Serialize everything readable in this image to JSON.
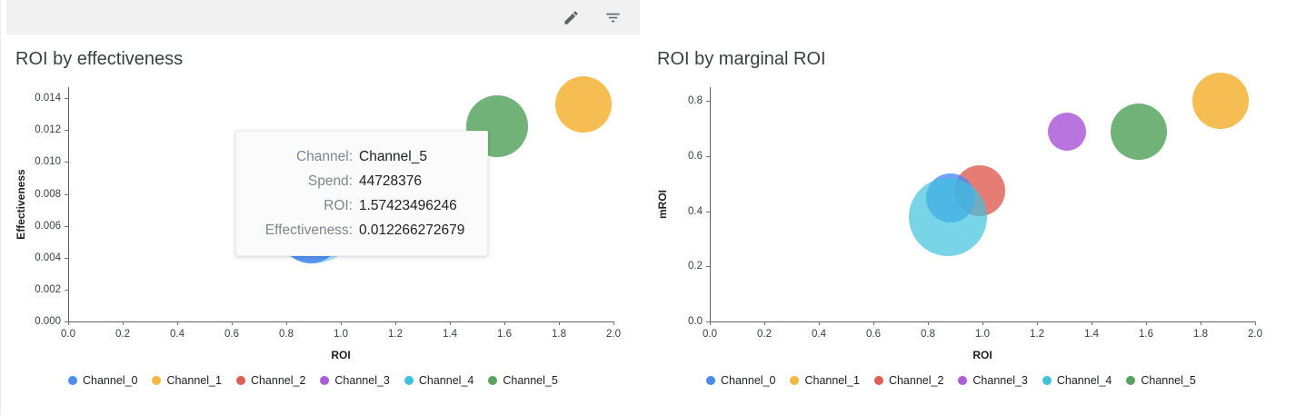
{
  "toolbar": {
    "icons": [
      {
        "name": "edit-icon"
      },
      {
        "name": "filter-icon"
      }
    ]
  },
  "palette": {
    "Channel_0": "#4c8bf5",
    "Channel_1": "#f4b63f",
    "Channel_2": "#e05d53",
    "Channel_3": "#ad5cd9",
    "Channel_4": "#3fc2dd",
    "Channel_5": "#57a45f"
  },
  "chart_data": [
    {
      "type": "scatter",
      "title": "ROI by effectiveness",
      "xlabel": "ROI",
      "ylabel": "Effectiveness",
      "xlim": [
        0,
        2.0
      ],
      "ylim": [
        0,
        0.0147
      ],
      "grid": false,
      "legend_position": "bottom",
      "xticks": [
        {
          "v": 0.0,
          "label": "0.0"
        },
        {
          "v": 0.2,
          "label": "0.2"
        },
        {
          "v": 0.4,
          "label": "0.4"
        },
        {
          "v": 0.6,
          "label": "0.6"
        },
        {
          "v": 0.8,
          "label": "0.8"
        },
        {
          "v": 1.0,
          "label": "1.0"
        },
        {
          "v": 1.2,
          "label": "1.2"
        },
        {
          "v": 1.4,
          "label": "1.4"
        },
        {
          "v": 1.6,
          "label": "1.6"
        },
        {
          "v": 1.8,
          "label": "1.8"
        },
        {
          "v": 2.0,
          "label": "2.0"
        }
      ],
      "yticks": [
        {
          "v": 0.0,
          "label": "0.000"
        },
        {
          "v": 0.002,
          "label": "0.002"
        },
        {
          "v": 0.004,
          "label": "0.004"
        },
        {
          "v": 0.006,
          "label": "0.006"
        },
        {
          "v": 0.008,
          "label": "0.008"
        },
        {
          "v": 0.01,
          "label": "0.010"
        },
        {
          "v": 0.012,
          "label": "0.012"
        },
        {
          "v": 0.014,
          "label": "0.014"
        }
      ],
      "points": [
        {
          "name": "Channel_4",
          "x": 0.9,
          "y": 0.0065,
          "r": 50,
          "alpha": 0.45
        },
        {
          "name": "Channel_0",
          "x": 0.89,
          "y": 0.0055,
          "r": 33,
          "alpha": 0.9
        },
        {
          "name": "Channel_5",
          "x": 1.574,
          "y": 0.012266,
          "r": 34,
          "alpha": 0.85
        },
        {
          "name": "Channel_1",
          "x": 1.89,
          "y": 0.0136,
          "r": 31,
          "alpha": 0.9
        }
      ],
      "legend": [
        "Channel_0",
        "Channel_1",
        "Channel_2",
        "Channel_3",
        "Channel_4",
        "Channel_5"
      ],
      "tooltip": {
        "rows": [
          {
            "label": "Channel:",
            "value": "Channel_5"
          },
          {
            "label": "Spend:",
            "value": "44728376"
          },
          {
            "label": "ROI:",
            "value": "1.57423496246"
          },
          {
            "label": "Effectiveness:",
            "value": "0.012266272679"
          }
        ]
      }
    },
    {
      "type": "scatter",
      "title": "ROI by marginal ROI",
      "xlabel": "ROI",
      "ylabel": "mROI",
      "xlim": [
        0,
        2.0
      ],
      "ylim": [
        0,
        0.85
      ],
      "grid": false,
      "legend_position": "bottom",
      "xticks": [
        {
          "v": 0.0,
          "label": "0.0"
        },
        {
          "v": 0.2,
          "label": "0.2"
        },
        {
          "v": 0.4,
          "label": "0.4"
        },
        {
          "v": 0.6,
          "label": "0.6"
        },
        {
          "v": 0.8,
          "label": "0.8"
        },
        {
          "v": 1.0,
          "label": "1.0"
        },
        {
          "v": 1.2,
          "label": "1.2"
        },
        {
          "v": 1.4,
          "label": "1.4"
        },
        {
          "v": 1.6,
          "label": "1.6"
        },
        {
          "v": 1.8,
          "label": "1.8"
        },
        {
          "v": 2.0,
          "label": "2.0"
        }
      ],
      "yticks": [
        {
          "v": 0.0,
          "label": "0.0"
        },
        {
          "v": 0.2,
          "label": "0.2"
        },
        {
          "v": 0.4,
          "label": "0.4"
        },
        {
          "v": 0.6,
          "label": "0.6"
        },
        {
          "v": 0.8,
          "label": "0.8"
        }
      ],
      "points": [
        {
          "name": "Channel_2",
          "x": 0.99,
          "y": 0.476,
          "r": 28,
          "alpha": 0.8
        },
        {
          "name": "Channel_0",
          "x": 0.883,
          "y": 0.447,
          "r": 27,
          "alpha": 0.8
        },
        {
          "name": "Channel_4",
          "x": 0.873,
          "y": 0.38,
          "r": 43,
          "alpha": 0.7
        },
        {
          "name": "Channel_3",
          "x": 1.31,
          "y": 0.69,
          "r": 21,
          "alpha": 0.85
        },
        {
          "name": "Channel_5",
          "x": 1.573,
          "y": 0.69,
          "r": 31,
          "alpha": 0.85
        },
        {
          "name": "Channel_1",
          "x": 1.873,
          "y": 0.8,
          "r": 31,
          "alpha": 0.9
        }
      ],
      "legend": [
        "Channel_0",
        "Channel_1",
        "Channel_2",
        "Channel_3",
        "Channel_4",
        "Channel_5"
      ]
    }
  ]
}
